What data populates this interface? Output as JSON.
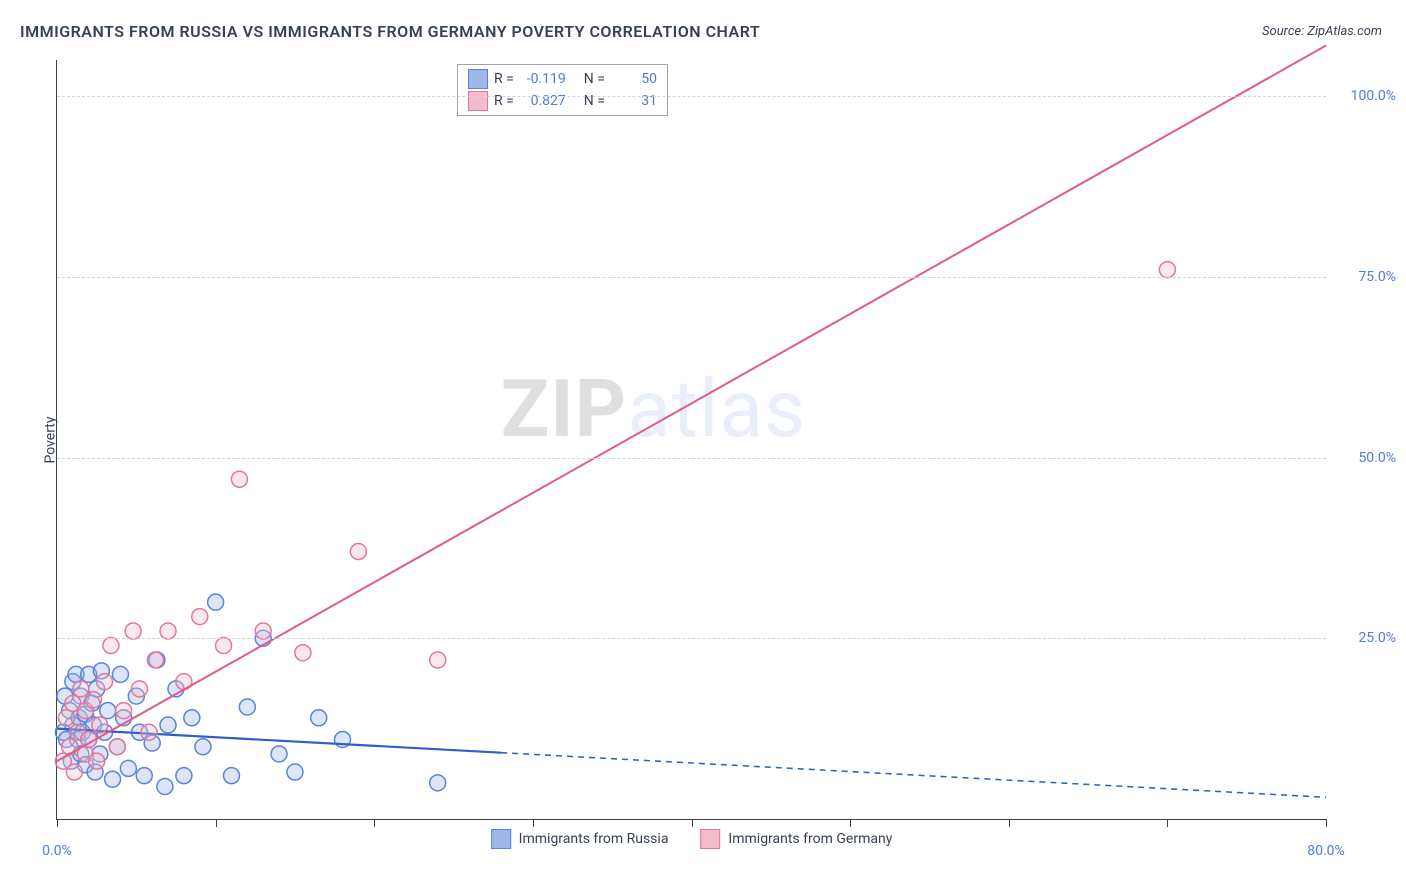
{
  "title": "IMMIGRANTS FROM RUSSIA VS IMMIGRANTS FROM GERMANY POVERTY CORRELATION CHART",
  "source": "Source: ZipAtlas.com",
  "ylabel": "Poverty",
  "watermark_zip": "ZIP",
  "watermark_atlas": "atlas",
  "xlim": [
    0,
    80
  ],
  "ylim": [
    0,
    105
  ],
  "x_ticks": [
    0,
    10,
    20,
    30,
    40,
    50,
    60,
    70,
    80
  ],
  "x_tick_labels": {
    "0": "0.0%",
    "80": "80.0%"
  },
  "y_ticks": [
    25,
    50,
    75,
    100
  ],
  "y_tick_labels": {
    "25": "25.0%",
    "50": "50.0%",
    "75": "75.0%",
    "100": "100.0%"
  },
  "grid_color": "#d1d5db",
  "axis_color": "#374151",
  "background_color": "#ffffff",
  "tick_label_color": "#4f7bd9",
  "marker_radius": 8,
  "marker_stroke_width": 1.5,
  "marker_fill_opacity": 0.35,
  "series": [
    {
      "name": "Immigrants from Russia",
      "fill": "#9db8e8",
      "stroke": "#5a84d6",
      "line_color": "#2f5fc2",
      "line_width": 2.2,
      "line_dash_after_x": 28,
      "dash_pattern": "6 5",
      "R_label": "R =",
      "R": "-0.119",
      "N_label": "N =",
      "N": "50",
      "trend": {
        "x1": 0,
        "y1": 12.5,
        "x2": 80,
        "y2": 3.0
      },
      "points": [
        [
          0.4,
          12
        ],
        [
          0.5,
          17
        ],
        [
          0.6,
          11
        ],
        [
          0.8,
          15
        ],
        [
          0.9,
          8
        ],
        [
          1.0,
          13
        ],
        [
          1.0,
          19
        ],
        [
          1.2,
          20
        ],
        [
          1.3,
          11
        ],
        [
          1.4,
          14
        ],
        [
          1.5,
          9
        ],
        [
          1.5,
          17
        ],
        [
          1.6,
          12
        ],
        [
          1.8,
          14.5
        ],
        [
          1.8,
          7.5
        ],
        [
          2.0,
          20
        ],
        [
          2.0,
          11
        ],
        [
          2.2,
          16
        ],
        [
          2.3,
          13
        ],
        [
          2.4,
          6.5
        ],
        [
          2.5,
          18
        ],
        [
          2.7,
          9
        ],
        [
          2.8,
          20.5
        ],
        [
          3.0,
          12
        ],
        [
          3.2,
          15
        ],
        [
          3.5,
          5.5
        ],
        [
          3.8,
          10
        ],
        [
          4.0,
          20
        ],
        [
          4.2,
          14
        ],
        [
          4.5,
          7
        ],
        [
          5.0,
          17
        ],
        [
          5.2,
          12
        ],
        [
          5.5,
          6
        ],
        [
          6.0,
          10.5
        ],
        [
          6.3,
          22
        ],
        [
          6.8,
          4.5
        ],
        [
          7.0,
          13
        ],
        [
          7.5,
          18
        ],
        [
          8.0,
          6
        ],
        [
          8.5,
          14
        ],
        [
          9.2,
          10
        ],
        [
          10.0,
          30
        ],
        [
          11.0,
          6
        ],
        [
          12.0,
          15.5
        ],
        [
          13.0,
          25
        ],
        [
          14.0,
          9
        ],
        [
          15.0,
          6.5
        ],
        [
          16.5,
          14
        ],
        [
          18.0,
          11
        ],
        [
          24.0,
          5
        ]
      ]
    },
    {
      "name": "Immigrants from Germany",
      "fill": "#f4bccb",
      "stroke": "#e077a0",
      "line_color": "#e05a8a",
      "line_width": 2,
      "line_dash_after_x": 80,
      "dash_pattern": "",
      "R_label": "R =",
      "R": "0.827",
      "N_label": "N =",
      "N": "31",
      "trend": {
        "x1": 0,
        "y1": 8.0,
        "x2": 80,
        "y2": 107.0
      },
      "points": [
        [
          0.4,
          8
        ],
        [
          0.6,
          14
        ],
        [
          0.8,
          10
        ],
        [
          1.0,
          16
        ],
        [
          1.1,
          6.5
        ],
        [
          1.3,
          12
        ],
        [
          1.5,
          18
        ],
        [
          1.8,
          9
        ],
        [
          1.8,
          15
        ],
        [
          2.0,
          11
        ],
        [
          2.3,
          16.5
        ],
        [
          2.5,
          8
        ],
        [
          2.7,
          13
        ],
        [
          3.0,
          19
        ],
        [
          3.4,
          24
        ],
        [
          3.8,
          10
        ],
        [
          4.2,
          15
        ],
        [
          4.8,
          26
        ],
        [
          5.2,
          18
        ],
        [
          5.8,
          12
        ],
        [
          6.2,
          22
        ],
        [
          7.0,
          26
        ],
        [
          8.0,
          19
        ],
        [
          9.0,
          28
        ],
        [
          10.5,
          24
        ],
        [
          11.5,
          47
        ],
        [
          13.0,
          26
        ],
        [
          15.5,
          23
        ],
        [
          19.0,
          37
        ],
        [
          24.0,
          22
        ],
        [
          70.0,
          76
        ]
      ]
    }
  ]
}
